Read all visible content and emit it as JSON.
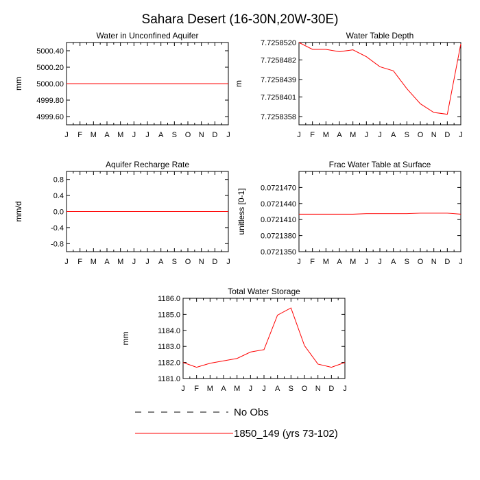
{
  "figure": {
    "title": "Sahara Desert (16-30N,20W-30E)"
  },
  "legend": {
    "entries": [
      {
        "label": "No Obs",
        "style": "dashed",
        "color": "#000000"
      },
      {
        "label": "1850_149 (yrs 73-102)",
        "style": "solid",
        "color": "#ff0000"
      }
    ]
  },
  "chart_data": [
    {
      "type": "line",
      "title": "Water in Unconfined Aquifer",
      "xlabel": "",
      "ylabel": "mm",
      "categories": [
        "J",
        "F",
        "M",
        "A",
        "M",
        "J",
        "J",
        "A",
        "S",
        "O",
        "N",
        "D",
        "J"
      ],
      "ylim": [
        4999.5,
        5000.5
      ],
      "yticks": [
        "5000.40",
        "5000.20",
        "5000.00",
        "4999.80",
        "4999.60"
      ],
      "ytick_values": [
        5000.4,
        5000.2,
        5000.0,
        4999.8,
        4999.6
      ],
      "series": [
        {
          "name": "1850_149 (yrs 73-102)",
          "color": "#ff0000",
          "values": [
            5000.0,
            5000.0,
            5000.0,
            5000.0,
            5000.0,
            5000.0,
            5000.0,
            5000.0,
            5000.0,
            5000.0,
            5000.0,
            5000.0,
            5000.0
          ]
        }
      ]
    },
    {
      "type": "line",
      "title": "Water Table Depth",
      "xlabel": "",
      "ylabel": "m",
      "categories": [
        "J",
        "F",
        "M",
        "A",
        "M",
        "J",
        "J",
        "A",
        "S",
        "O",
        "N",
        "D",
        "J"
      ],
      "ylim": [
        7.725834,
        7.725852
      ],
      "yticks": [
        "7.7258520",
        "7.7258482",
        "7.7258439",
        "7.7258401",
        "7.7258358"
      ],
      "ytick_values": [
        7.725852,
        7.7258482,
        7.7258439,
        7.7258401,
        7.7258358
      ],
      "series": [
        {
          "name": "1850_149 (yrs 73-102)",
          "color": "#ff0000",
          "values": [
            7.725852,
            7.7258505,
            7.7258505,
            7.72585,
            7.7258504,
            7.7258489,
            7.7258467,
            7.7258458,
            7.7258419,
            7.7258386,
            7.7258367,
            7.7258363,
            7.7258517
          ]
        }
      ]
    },
    {
      "type": "line",
      "title": "Aquifer Recharge Rate",
      "xlabel": "",
      "ylabel": "mm/d",
      "categories": [
        "J",
        "F",
        "M",
        "A",
        "M",
        "J",
        "J",
        "A",
        "S",
        "O",
        "N",
        "D",
        "J"
      ],
      "ylim": [
        -1.0,
        1.0
      ],
      "yticks": [
        "0.8",
        "0.4",
        "0.0",
        "-0.4",
        "-0.8"
      ],
      "ytick_values": [
        0.8,
        0.4,
        0.0,
        -0.4,
        -0.8
      ],
      "series": [
        {
          "name": "1850_149 (yrs 73-102)",
          "color": "#ff0000",
          "values": [
            0,
            0,
            0,
            0,
            0,
            0,
            0,
            0,
            0,
            0,
            0,
            0,
            0
          ]
        }
      ]
    },
    {
      "type": "line",
      "title": "Frac Water Table at Surface",
      "xlabel": "",
      "ylabel": "unitless [0-1]",
      "categories": [
        "J",
        "F",
        "M",
        "A",
        "M",
        "J",
        "J",
        "A",
        "S",
        "O",
        "N",
        "D",
        "J"
      ],
      "ylim": [
        0.072135,
        0.07215
      ],
      "yticks": [
        "0.0721470",
        "0.0721440",
        "0.0721410",
        "0.0721380",
        "0.0721350"
      ],
      "ytick_values": [
        0.072147,
        0.072144,
        0.072141,
        0.072138,
        0.072135
      ],
      "series": [
        {
          "name": "1850_149 (yrs 73-102)",
          "color": "#ff0000",
          "values": [
            0.072142,
            0.072142,
            0.072142,
            0.072142,
            0.072142,
            0.0721421,
            0.0721421,
            0.0721421,
            0.0721421,
            0.0721422,
            0.0721422,
            0.0721422,
            0.072142
          ]
        }
      ]
    },
    {
      "type": "line",
      "title": "Total Water Storage",
      "xlabel": "",
      "ylabel": "mm",
      "categories": [
        "J",
        "F",
        "M",
        "A",
        "M",
        "J",
        "J",
        "A",
        "S",
        "O",
        "N",
        "D",
        "J"
      ],
      "ylim": [
        1181.0,
        1186.0
      ],
      "yticks": [
        "1186.0",
        "1185.0",
        "1184.0",
        "1183.0",
        "1182.0",
        "1181.0"
      ],
      "ytick_values": [
        1186.0,
        1185.0,
        1184.0,
        1183.0,
        1182.0,
        1181.0
      ],
      "series": [
        {
          "name": "1850_149 (yrs 73-102)",
          "color": "#ff0000",
          "values": [
            1182.0,
            1181.7,
            1181.95,
            1182.1,
            1182.25,
            1182.65,
            1182.8,
            1184.95,
            1185.4,
            1183.05,
            1181.9,
            1181.7,
            1182.0
          ]
        }
      ]
    }
  ]
}
